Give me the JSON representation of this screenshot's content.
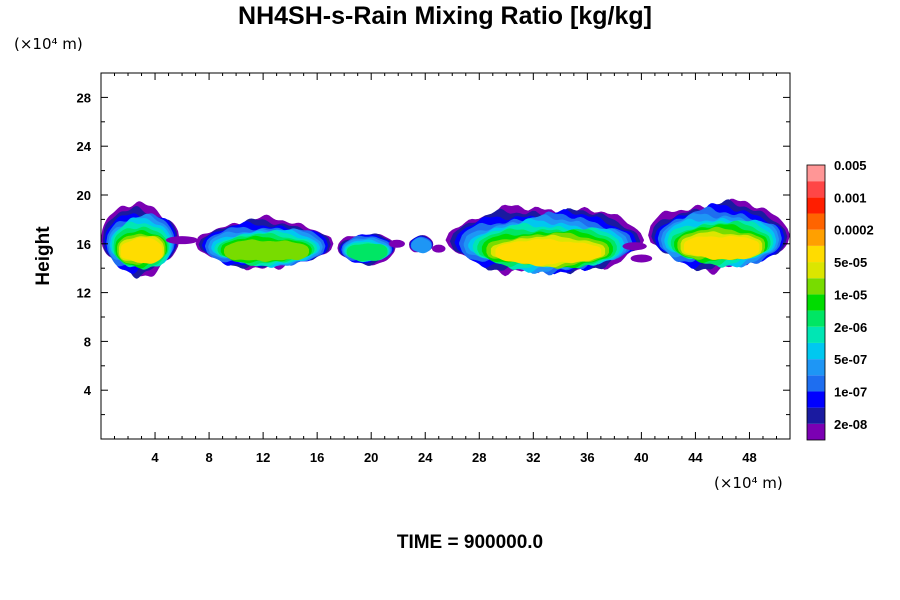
{
  "chart_data": {
    "type": "heatmap",
    "title": "NH4SH-s-Rain Mixing Ratio [kg/kg]",
    "ylabel": "Height",
    "x_unit": "(×10⁴ m)",
    "y_unit": "(×10⁴ m)",
    "xlim": [
      0,
      51
    ],
    "ylim": [
      0,
      30
    ],
    "x_ticks": [
      "4",
      "8",
      "12",
      "16",
      "20",
      "24",
      "28",
      "32",
      "36",
      "40",
      "44",
      "48"
    ],
    "y_ticks": [
      "4",
      "8",
      "12",
      "16",
      "20",
      "24",
      "28"
    ],
    "colorbar": {
      "colors": [
        "#7b00b3",
        "#1a1aa0",
        "#0000ff",
        "#1e6ef0",
        "#1e96f5",
        "#00c8f0",
        "#00e6b4",
        "#00e664",
        "#00dc00",
        "#78dc00",
        "#dce600",
        "#ffdc00",
        "#ffa000",
        "#ff6400",
        "#ff1e00",
        "#ff4646",
        "#ff9696"
      ],
      "labels": [
        "2e-08",
        "1e-07",
        "5e-07",
        "2e-06",
        "1e-05",
        "5e-05",
        "0.0002",
        "0.001",
        "0.005"
      ]
    },
    "cloud_band": {
      "bottom_height": 13,
      "top_height": 20,
      "segments": [
        {
          "x_start": 0,
          "x_end": 5.8,
          "base": 13,
          "top": 19.8,
          "core": 0.75
        },
        {
          "x_start": 7.0,
          "x_end": 17.2,
          "base": 13.6,
          "top": 18.4,
          "core": 0.65
        },
        {
          "x_start": 17.5,
          "x_end": 21.8,
          "base": 14.1,
          "top": 17.2,
          "core": 0.45
        },
        {
          "x_start": 22.8,
          "x_end": 24.6,
          "base": 15.0,
          "top": 16.9,
          "core": 0.25
        },
        {
          "x_start": 25.5,
          "x_end": 40.2,
          "base": 13.0,
          "top": 19.6,
          "core": 0.8
        },
        {
          "x_start": 40.5,
          "x_end": 51.0,
          "base": 13.4,
          "top": 20.0,
          "core": 0.75
        }
      ]
    },
    "time_label": "TIME = 900000.0"
  }
}
